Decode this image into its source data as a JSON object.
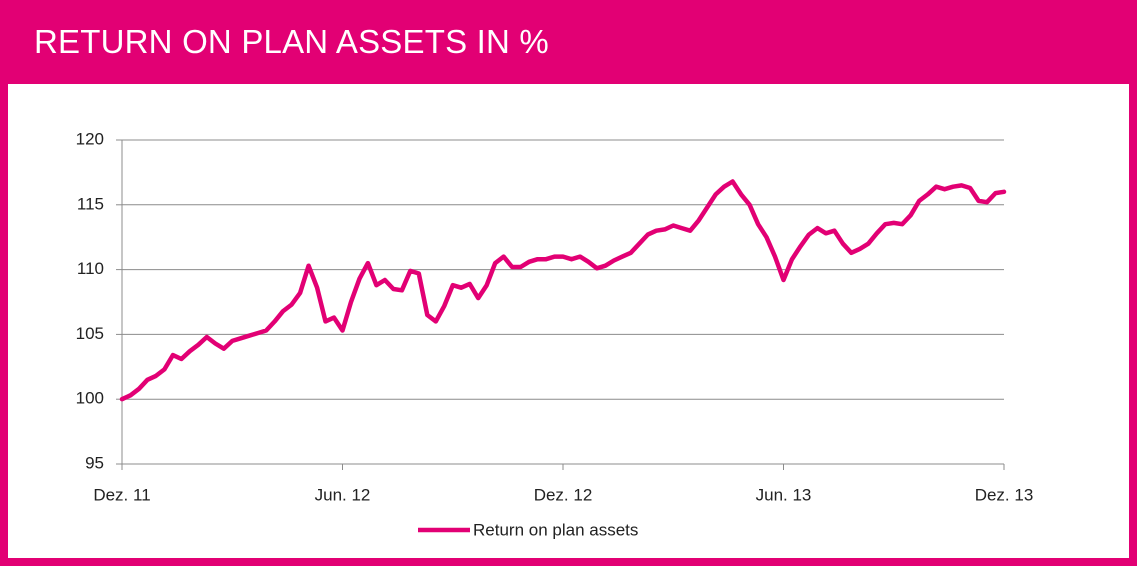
{
  "chart_data": {
    "type": "line",
    "title": "RETURN ON PLAN ASSETS IN %",
    "categories": [
      "Dez. 11",
      null,
      null,
      null,
      null,
      null,
      null,
      null,
      null,
      null,
      null,
      null,
      null,
      null,
      null,
      null,
      null,
      null,
      null,
      null,
      null,
      null,
      null,
      null,
      null,
      null,
      "Jun. 12",
      null,
      null,
      null,
      null,
      null,
      null,
      null,
      null,
      null,
      null,
      null,
      null,
      null,
      null,
      null,
      null,
      null,
      null,
      null,
      null,
      null,
      null,
      null,
      null,
      null,
      "Dez. 12",
      null,
      null,
      null,
      null,
      null,
      null,
      null,
      null,
      null,
      null,
      null,
      null,
      null,
      null,
      null,
      null,
      null,
      null,
      null,
      null,
      null,
      null,
      null,
      null,
      null,
      "Jun. 13",
      null,
      null,
      null,
      null,
      null,
      null,
      null,
      null,
      null,
      null,
      null,
      null,
      null,
      null,
      null,
      null,
      null,
      null,
      null,
      null,
      null,
      null,
      null,
      null,
      null,
      "Dez. 13"
    ],
    "series": [
      {
        "name": "Return on plan assets",
        "color": "#e20074",
        "values": [
          100,
          100.3,
          100.8,
          101.5,
          101.8,
          102.3,
          103.4,
          103.1,
          103.7,
          104.2,
          104.8,
          104.3,
          103.9,
          104.5,
          104.7,
          104.9,
          105.1,
          105.3,
          106,
          106.8,
          107.3,
          108.2,
          110.3,
          108.6,
          106,
          106.3,
          105.3,
          107.5,
          109.3,
          110.5,
          108.8,
          109.2,
          108.5,
          108.4,
          109.9,
          109.7,
          106.5,
          106,
          107.2,
          108.8,
          108.6,
          108.9,
          107.8,
          108.8,
          110.5,
          111,
          110.2,
          110.2,
          110.6,
          110.8,
          110.8,
          111,
          111,
          110.8,
          111,
          110.6,
          110.1,
          110.3,
          110.7,
          111,
          111.3,
          112,
          112.7,
          113,
          113.1,
          113.4,
          113.2,
          113,
          113.8,
          114.8,
          115.8,
          116.4,
          116.8,
          115.8,
          115,
          113.5,
          112.5,
          111,
          109.2,
          110.8,
          111.8,
          112.7,
          113.2,
          112.8,
          113,
          112,
          111.3,
          111.6,
          112,
          112.8,
          113.5,
          113.6,
          113.5,
          114.2,
          115.3,
          115.8,
          116.4,
          116.2,
          116.4,
          116.5,
          116.3,
          115.3,
          115.2,
          115.9,
          116
        ]
      }
    ],
    "ylim": [
      95,
      120
    ],
    "yticks": [
      95,
      100,
      105,
      110,
      115,
      120
    ],
    "grid": true,
    "legend": "bottom"
  }
}
